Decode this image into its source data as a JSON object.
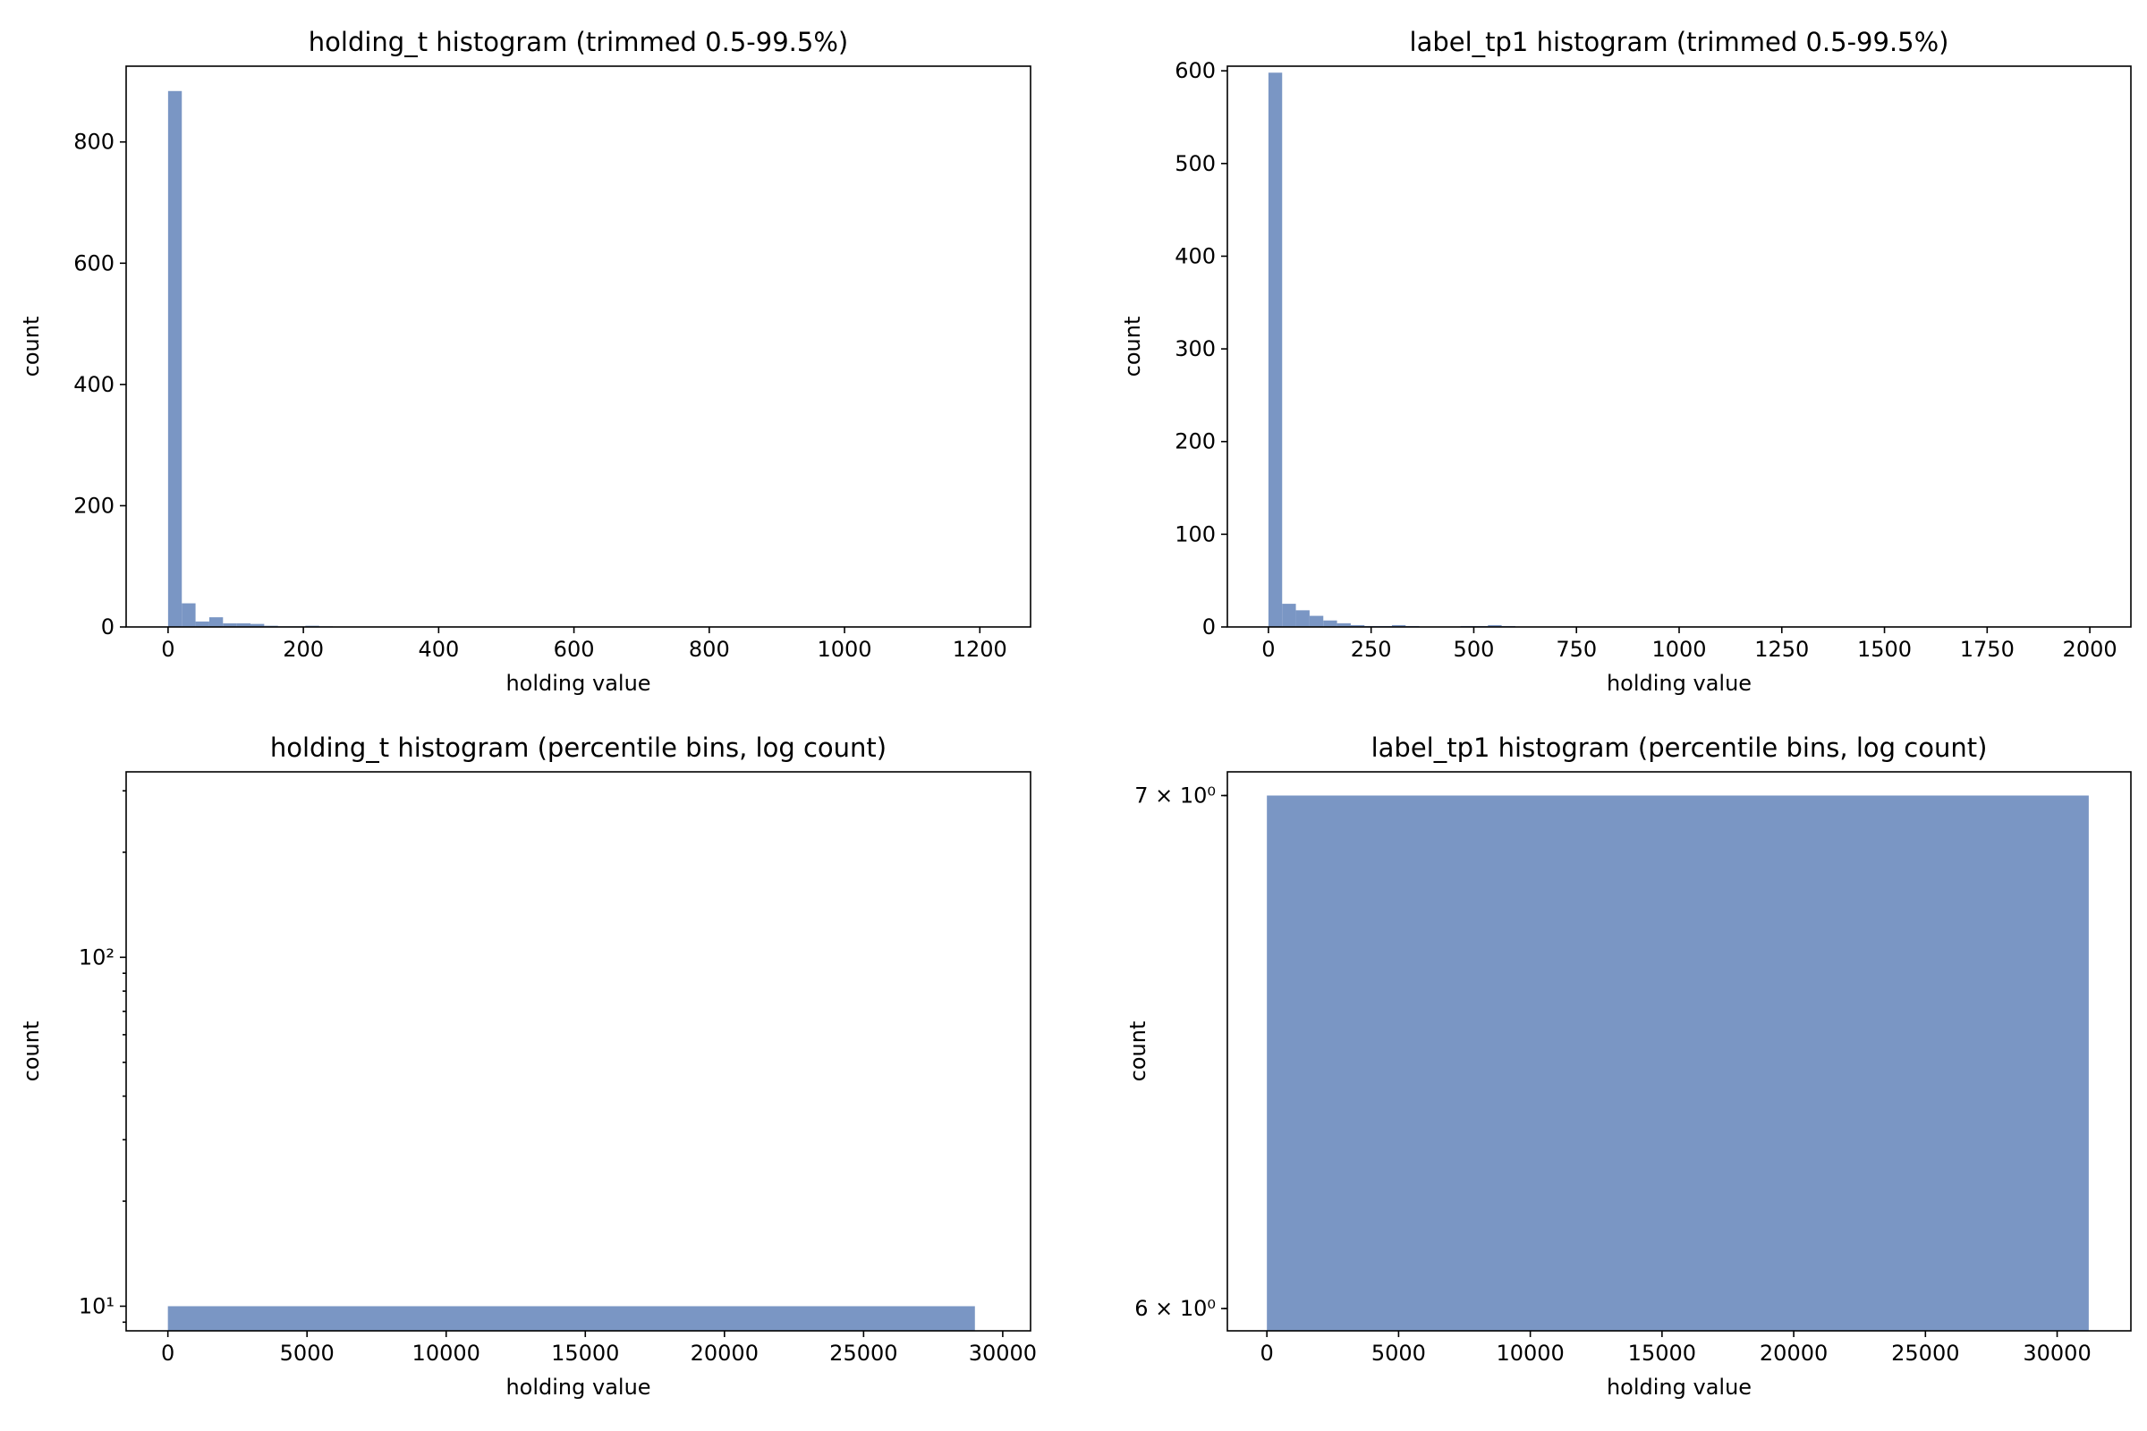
{
  "chart_data": [
    {
      "type": "bar",
      "title": "holding_t histogram (trimmed 0.5-99.5%)",
      "xlabel": "holding value",
      "ylabel": "count",
      "xlim": [
        -62,
        1275
      ],
      "ylim": [
        0,
        925
      ],
      "yscale": "linear",
      "xticks": [
        0,
        200,
        400,
        600,
        800,
        1000,
        1200
      ],
      "xtick_labels": [
        "0",
        "200",
        "400",
        "600",
        "800",
        "1000",
        "1200"
      ],
      "yticks": [
        0,
        200,
        400,
        600,
        800
      ],
      "ytick_labels": [
        "0",
        "200",
        "400",
        "600",
        "800"
      ],
      "bin_edges": [
        0,
        20.3,
        40.6,
        60.9,
        81.2,
        101.5,
        121.8,
        142.1,
        162.4,
        182.7,
        203,
        223.3,
        243.6
      ],
      "values": [
        884,
        39,
        9,
        16,
        6,
        6,
        5,
        2,
        1,
        1,
        2,
        1
      ]
    },
    {
      "type": "bar",
      "title": "label_tp1 histogram (trimmed 0.5-99.5%)",
      "xlabel": "holding value",
      "ylabel": "count",
      "xlim": [
        -100,
        2100
      ],
      "ylim": [
        0,
        605
      ],
      "yscale": "linear",
      "xticks": [
        0,
        250,
        500,
        750,
        1000,
        1250,
        1500,
        1750,
        2000
      ],
      "xtick_labels": [
        "0",
        "250",
        "500",
        "750",
        "1000",
        "1250",
        "1500",
        "1750",
        "2000"
      ],
      "yticks": [
        0,
        100,
        200,
        300,
        400,
        500,
        600
      ],
      "ytick_labels": [
        "0",
        "100",
        "200",
        "300",
        "400",
        "500",
        "600"
      ],
      "bin_edges": [
        0,
        33.4,
        66.8,
        100.2,
        133.6,
        167,
        200.4,
        233.8,
        267.2,
        300.6,
        334,
        367.4,
        400.8,
        434.2,
        467.6,
        501,
        534.4,
        567.8,
        601.2
      ],
      "values": [
        598,
        25,
        18,
        12,
        7,
        4,
        2,
        1,
        1,
        2,
        1,
        0,
        0,
        0,
        1,
        1,
        2,
        1
      ]
    },
    {
      "type": "bar",
      "title": "holding_t histogram (percentile bins, log count)",
      "xlabel": "holding value",
      "ylabel": "count",
      "xlim": [
        -1500,
        31000
      ],
      "ylim": [
        8.5,
        340
      ],
      "yscale": "log",
      "xticks": [
        0,
        5000,
        10000,
        15000,
        20000,
        25000,
        30000
      ],
      "xtick_labels": [
        "0",
        "5000",
        "10000",
        "15000",
        "20000",
        "25000",
        "30000"
      ],
      "yticks": [
        10,
        100
      ],
      "ytick_labels": [
        "10¹",
        "10²"
      ],
      "bin_edges": [
        0,
        29000
      ],
      "values": [
        10
      ]
    },
    {
      "type": "bar",
      "title": "label_tp1 histogram (percentile bins, log count)",
      "xlabel": "holding value",
      "ylabel": "count",
      "xlim": [
        -1500,
        32800
      ],
      "ylim": [
        5.96,
        7.05
      ],
      "yscale": "log",
      "xticks": [
        0,
        5000,
        10000,
        15000,
        20000,
        25000,
        30000
      ],
      "xtick_labels": [
        "0",
        "5000",
        "10000",
        "15000",
        "20000",
        "25000",
        "30000"
      ],
      "yticks": [
        6,
        7
      ],
      "ytick_labels": [
        "6 × 10⁰",
        "7 × 10⁰"
      ],
      "bin_edges": [
        0,
        31200
      ],
      "values": [
        7
      ]
    }
  ],
  "style": {
    "bar_color": "#7a96c4"
  }
}
